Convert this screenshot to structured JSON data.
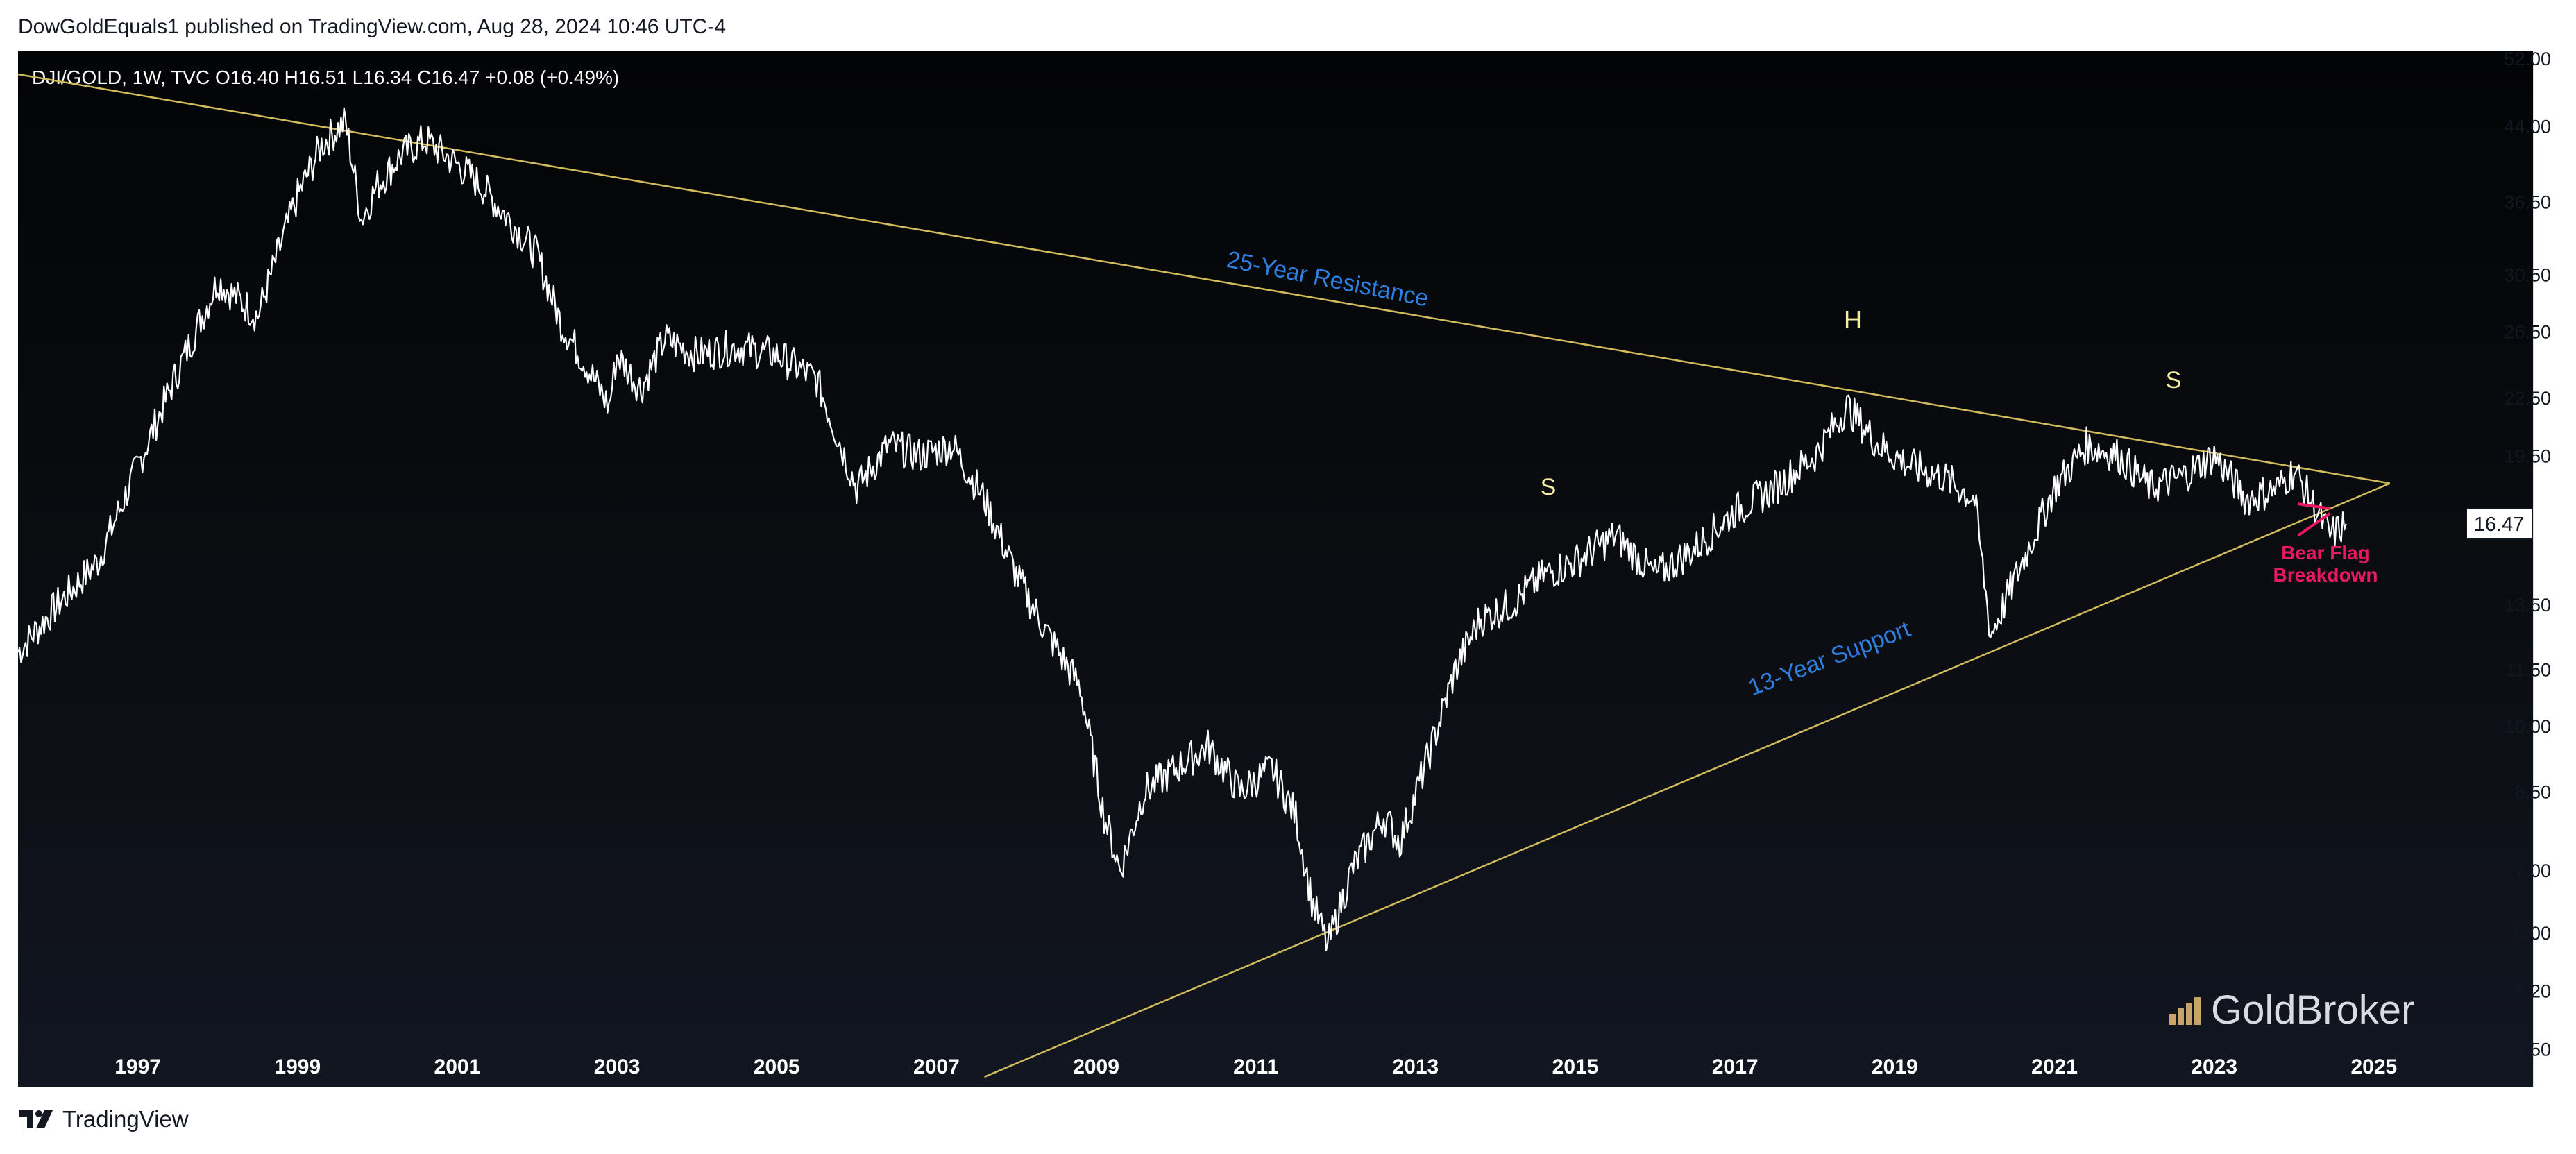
{
  "caption": "DowGoldEquals1 published on TradingView.com, Aug 28, 2024 10:46 UTC-4",
  "footer": {
    "brand": "TradingView"
  },
  "colors": {
    "background": "#05060a",
    "price": "#ffffff",
    "trendline": "#d1bb5a",
    "annotation_blue": "#2d7fe0",
    "annotation_pink": "#e8195e",
    "hs_letters": "#f4eca0"
  },
  "chart_data": {
    "type": "line",
    "symbol_line": "DJI/GOLD, 1W, TVC  O16.40  H16.51  L16.34  C16.47  +0.08 (+0.49%)",
    "y_scale": "log",
    "ylim": [
      4.1,
      53
    ],
    "xlim": [
      1995.5,
      2027.0
    ],
    "y_ticks": [
      "52.00",
      "44.00",
      "36.50",
      "30.50",
      "26.50",
      "22.50",
      "19.50",
      "16.50",
      "13.50",
      "11.50",
      "10.00",
      "8.50",
      "7.00",
      "6.00",
      "5.20",
      "4.50"
    ],
    "x_ticks": [
      "1997",
      "1999",
      "2001",
      "2003",
      "2005",
      "2007",
      "2009",
      "2011",
      "2013",
      "2015",
      "2017",
      "2019",
      "2021",
      "2023",
      "2025"
    ],
    "last_price": "16.47",
    "series": [
      {
        "x": [
          1995.5,
          1996.0,
          1996.5,
          1997.0,
          1997.5,
          1998.0,
          1998.5,
          1998.8,
          1999.0,
          1999.3,
          1999.6,
          1999.8,
          2000.0,
          2000.3,
          2000.6,
          2001.0,
          2001.3,
          2001.7,
          2002.0,
          2002.3,
          2002.6,
          2002.9,
          2003.0,
          2003.3,
          2003.6,
          2004.0,
          2004.5,
          2005.0,
          2005.5,
          2006.0,
          2006.4,
          2006.8,
          2007.2,
          2007.6,
          2008.0,
          2008.4,
          2008.8,
          2009.1,
          2009.3,
          2009.6,
          2010.0,
          2010.4,
          2010.8,
          2011.2,
          2011.5,
          2011.7,
          2011.9,
          2012.2,
          2012.6,
          2012.8,
          2013.2,
          2013.5,
          2013.8,
          2014.2,
          2014.6,
          2015.0,
          2015.5,
          2016.0,
          2016.5,
          2017.0,
          2017.5,
          2018.0,
          2018.4,
          2018.8,
          2019.2,
          2019.6,
          2020.0,
          2020.2,
          2020.6,
          2021.0,
          2021.4,
          2021.8,
          2022.2,
          2022.6,
          2023.0,
          2023.4,
          2023.8,
          2024.0,
          2024.2,
          2024.45,
          2024.65
        ],
        "values": [
          12.0,
          13.5,
          15.0,
          19.0,
          24.0,
          30.0,
          27.5,
          33.0,
          37.0,
          42.0,
          44.5,
          35.0,
          38.0,
          41.0,
          42.5,
          40.0,
          38.0,
          34.5,
          32.0,
          27.0,
          24.5,
          22.0,
          25.0,
          23.0,
          26.0,
          25.0,
          25.5,
          25.0,
          23.5,
          18.0,
          20.0,
          19.5,
          20.0,
          17.5,
          14.5,
          12.5,
          11.0,
          8.0,
          7.0,
          8.5,
          9.0,
          9.5,
          8.5,
          9.0,
          8.0,
          6.5,
          5.8,
          7.0,
          8.0,
          7.5,
          9.5,
          11.5,
          13.0,
          13.5,
          14.5,
          15.0,
          16.0,
          14.5,
          15.5,
          17.0,
          18.0,
          19.5,
          22.0,
          20.0,
          19.0,
          18.5,
          17.5,
          12.5,
          15.0,
          18.0,
          20.0,
          19.5,
          18.0,
          18.5,
          19.5,
          17.5,
          18.0,
          18.8,
          17.5,
          16.0,
          16.47
        ]
      }
    ],
    "annotations": [
      {
        "text": "25-Year Resistance",
        "color": "#2d7fe0"
      },
      {
        "text": "13-Year Support",
        "color": "#2d7fe0"
      },
      {
        "text": "S",
        "color": "#f4eca0"
      },
      {
        "text": "H",
        "color": "#f4eca0"
      },
      {
        "text": "S",
        "color": "#f4eca0"
      },
      {
        "text": "Bear Flag",
        "color": "#e8195e"
      },
      {
        "text": "Breakdown",
        "color": "#e8195e"
      }
    ],
    "trendlines": [
      {
        "name": "resistance",
        "from": [
          1995.5,
          50.0
        ],
        "to": [
          2025.2,
          18.2
        ]
      },
      {
        "name": "support",
        "from": [
          2007.6,
          4.2
        ],
        "to": [
          2025.2,
          18.2
        ]
      }
    ],
    "bear_flag": {
      "upper": [
        [
          2024.05,
          17.3
        ],
        [
          2024.45,
          17.1
        ]
      ],
      "lower": [
        [
          2024.05,
          16.0
        ],
        [
          2024.45,
          16.9
        ]
      ]
    },
    "watermark": "GoldBroker"
  }
}
